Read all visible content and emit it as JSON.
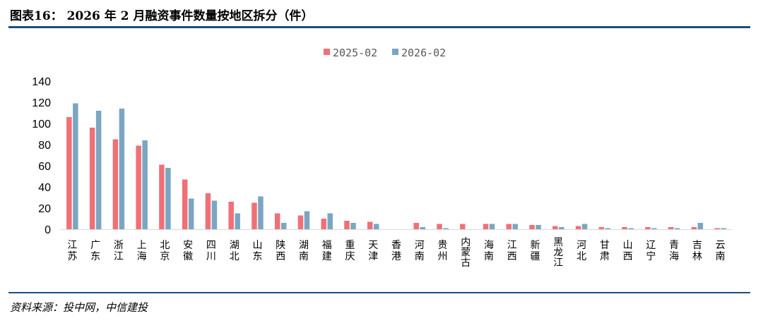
{
  "header": {
    "title": "图表16： 2026 年 2 月融资事件数量按地区拆分（件）"
  },
  "footer": {
    "source": "资料来源：投中网，中信建投"
  },
  "chart_data": {
    "type": "bar",
    "title": "",
    "xlabel": "",
    "ylabel": "",
    "ylim": [
      0,
      140
    ],
    "yticks": [
      0,
      20,
      40,
      60,
      80,
      100,
      120,
      140
    ],
    "grid": false,
    "legend_position": "top",
    "categories": [
      "江苏",
      "广东",
      "浙江",
      "上海",
      "北京",
      "安徽",
      "四川",
      "湖北",
      "山东",
      "陕西",
      "湖南",
      "福建",
      "重庆",
      "天津",
      "香港",
      "河南",
      "贵州",
      "内蒙古",
      "海南",
      "江西",
      "新疆",
      "黑龙江",
      "河北",
      "甘肃",
      "山西",
      "辽宁",
      "青海",
      "吉林",
      "云南"
    ],
    "series": [
      {
        "name": "2025-02",
        "color": "#f07078",
        "values": [
          106,
          96,
          85,
          79,
          61,
          47,
          34,
          26,
          25,
          15,
          13,
          10,
          8,
          7,
          0,
          6,
          5,
          5,
          5,
          5,
          4,
          3,
          3,
          2,
          2,
          2,
          2,
          2,
          1
        ]
      },
      {
        "name": "2026-02",
        "color": "#7aa6c2",
        "values": [
          119,
          112,
          114,
          84,
          58,
          29,
          27,
          15,
          31,
          6,
          17,
          15,
          6,
          5,
          0,
          2,
          1,
          0,
          5,
          5,
          4,
          2,
          5,
          1,
          1,
          1,
          1,
          6,
          1
        ]
      }
    ]
  }
}
